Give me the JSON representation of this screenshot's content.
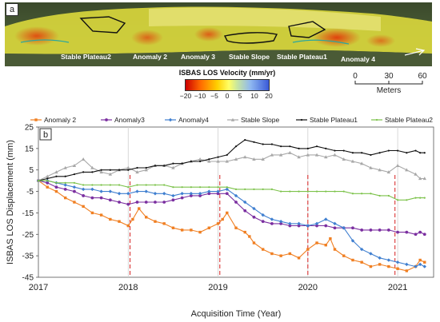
{
  "panel_a": {
    "tag": "a",
    "labels": [
      "Stable Plateau2",
      "Anomaly 2",
      "Anomaly 3",
      "Stable Slope",
      "Stable Plateau1",
      "Anomaly 4"
    ]
  },
  "colorbar": {
    "title": "ISBAS LOS Velocity (mm/yr)",
    "ticks": [
      "−20",
      "−10",
      "−5",
      "0",
      "5",
      "10",
      "20"
    ],
    "colors": [
      "#cc0000",
      "#ff6a00",
      "#ffd000",
      "#ffff66",
      "#c8e6a0",
      "#8fb8f0",
      "#3a5ad8"
    ]
  },
  "scalebar": {
    "ticks": [
      "0",
      "30",
      "60"
    ],
    "unit": "Meters"
  },
  "chart_data": {
    "type": "line",
    "tag": "b",
    "title": "",
    "xlabel": "Acquisition Time (Year)",
    "ylabel": "ISBAS LOS Displacement (mm)",
    "xlim": [
      2017,
      2021.4
    ],
    "ylim": [
      -45,
      25
    ],
    "xticks": [
      "2017",
      "2018",
      "2019",
      "2020",
      "2021"
    ],
    "yticks": [
      "25",
      "15",
      "5",
      "-5",
      "-15",
      "-25",
      "-35",
      "-45"
    ],
    "ytick_values": [
      25,
      15,
      5,
      -5,
      -15,
      -25,
      -35,
      -45
    ],
    "grid": "vertical",
    "event_lines_x": [
      2018.02,
      2019.02,
      2020.0,
      2020.97
    ],
    "legend_position": "top",
    "series": [
      {
        "name": "Anomaly 2",
        "color": "#f07f22",
        "marker": "square",
        "x": [
          2017.0,
          2017.1,
          2017.2,
          2017.3,
          2017.4,
          2017.5,
          2017.6,
          2017.7,
          2017.8,
          2017.9,
          2018.0,
          2018.05,
          2018.12,
          2018.2,
          2018.3,
          2018.4,
          2018.5,
          2018.6,
          2018.7,
          2018.8,
          2018.9,
          2019.0,
          2019.05,
          2019.1,
          2019.2,
          2019.3,
          2019.35,
          2019.4,
          2019.5,
          2019.6,
          2019.7,
          2019.8,
          2019.9,
          2020.0,
          2020.1,
          2020.2,
          2020.25,
          2020.3,
          2020.4,
          2020.5,
          2020.6,
          2020.7,
          2020.8,
          2020.9,
          2021.0,
          2021.1,
          2021.2,
          2021.25,
          2021.3
        ],
        "y": [
          0,
          -3,
          -5,
          -8,
          -10,
          -12,
          -15,
          -16,
          -18,
          -19,
          -21,
          -18,
          -13,
          -17,
          -19,
          -20,
          -22,
          -23,
          -23,
          -24,
          -22,
          -20,
          -18,
          -15,
          -22,
          -24,
          -26,
          -29,
          -32,
          -34,
          -35,
          -34,
          -36,
          -32,
          -29,
          -30,
          -27,
          -32,
          -35,
          -37,
          -38,
          -40,
          -39,
          -40,
          -41,
          -42,
          -40,
          -37,
          -38
        ]
      },
      {
        "name": "Anomaly3",
        "color": "#7b2fa0",
        "marker": "circle",
        "x": [
          2017.0,
          2017.1,
          2017.2,
          2017.3,
          2017.4,
          2017.5,
          2017.6,
          2017.7,
          2017.8,
          2017.9,
          2018.0,
          2018.1,
          2018.2,
          2018.3,
          2018.4,
          2018.5,
          2018.6,
          2018.7,
          2018.8,
          2018.9,
          2019.0,
          2019.1,
          2019.2,
          2019.3,
          2019.4,
          2019.5,
          2019.6,
          2019.7,
          2019.8,
          2019.9,
          2020.0,
          2020.1,
          2020.2,
          2020.3,
          2020.4,
          2020.5,
          2020.6,
          2020.7,
          2020.8,
          2020.9,
          2021.0,
          2021.1,
          2021.2,
          2021.25,
          2021.3
        ],
        "y": [
          0,
          -1,
          -3,
          -4,
          -5,
          -7,
          -8,
          -8,
          -9,
          -10,
          -11,
          -10,
          -10,
          -10,
          -10,
          -9,
          -8,
          -7,
          -7,
          -6,
          -6,
          -6,
          -10,
          -14,
          -17,
          -19,
          -20,
          -20,
          -21,
          -21,
          -21,
          -21,
          -21,
          -22,
          -22,
          -22,
          -23,
          -23,
          -23,
          -23,
          -24,
          -24,
          -25,
          -24,
          -25
        ]
      },
      {
        "name": "Anomaly4",
        "color": "#3f7fd0",
        "marker": "diamond",
        "x": [
          2017.0,
          2017.1,
          2017.2,
          2017.3,
          2017.4,
          2017.5,
          2017.6,
          2017.7,
          2017.8,
          2017.9,
          2018.0,
          2018.1,
          2018.2,
          2018.3,
          2018.4,
          2018.5,
          2018.6,
          2018.7,
          2018.8,
          2018.9,
          2019.0,
          2019.1,
          2019.2,
          2019.3,
          2019.4,
          2019.5,
          2019.6,
          2019.7,
          2019.8,
          2019.9,
          2020.0,
          2020.1,
          2020.2,
          2020.3,
          2020.4,
          2020.5,
          2020.6,
          2020.7,
          2020.8,
          2020.9,
          2021.0,
          2021.1,
          2021.2,
          2021.25,
          2021.3
        ],
        "y": [
          0,
          0,
          -1,
          -2,
          -3,
          -4,
          -4,
          -5,
          -5,
          -6,
          -6,
          -5,
          -5,
          -6,
          -6,
          -7,
          -6,
          -6,
          -6,
          -5,
          -5,
          -4,
          -7,
          -10,
          -13,
          -16,
          -18,
          -19,
          -20,
          -20,
          -21,
          -20,
          -18,
          -20,
          -22,
          -28,
          -32,
          -34,
          -36,
          -37,
          -38,
          -39,
          -40,
          -39,
          -40
        ]
      },
      {
        "name": "Stable Slope",
        "color": "#a8a8a8",
        "marker": "triangle",
        "x": [
          2017.0,
          2017.1,
          2017.2,
          2017.3,
          2017.4,
          2017.5,
          2017.6,
          2017.7,
          2017.8,
          2017.9,
          2018.0,
          2018.1,
          2018.2,
          2018.3,
          2018.4,
          2018.5,
          2018.6,
          2018.7,
          2018.8,
          2018.9,
          2019.0,
          2019.1,
          2019.2,
          2019.3,
          2019.4,
          2019.5,
          2019.6,
          2019.7,
          2019.8,
          2019.9,
          2020.0,
          2020.1,
          2020.2,
          2020.3,
          2020.4,
          2020.5,
          2020.6,
          2020.7,
          2020.8,
          2020.9,
          2021.0,
          2021.1,
          2021.2,
          2021.25,
          2021.3
        ],
        "y": [
          0,
          2,
          4,
          6,
          7,
          10,
          6,
          4,
          3,
          5,
          6,
          4,
          5,
          7,
          7,
          6,
          8,
          9,
          10,
          9,
          9,
          9,
          10,
          11,
          10,
          10,
          12,
          12,
          13,
          11,
          12,
          12,
          11,
          12,
          10,
          9,
          8,
          6,
          5,
          4,
          7,
          5,
          3,
          1,
          1
        ]
      },
      {
        "name": "Stable Plateau1",
        "color": "#111111",
        "marker": "dot",
        "x": [
          2017.0,
          2017.1,
          2017.2,
          2017.3,
          2017.4,
          2017.5,
          2017.6,
          2017.7,
          2017.8,
          2017.9,
          2018.0,
          2018.1,
          2018.2,
          2018.3,
          2018.4,
          2018.5,
          2018.6,
          2018.7,
          2018.8,
          2018.9,
          2019.0,
          2019.1,
          2019.2,
          2019.3,
          2019.4,
          2019.5,
          2019.6,
          2019.7,
          2019.8,
          2019.9,
          2020.0,
          2020.1,
          2020.2,
          2020.3,
          2020.4,
          2020.5,
          2020.6,
          2020.7,
          2020.8,
          2020.9,
          2021.0,
          2021.1,
          2021.2,
          2021.25,
          2021.3
        ],
        "y": [
          0,
          1,
          2,
          2,
          3,
          4,
          4,
          5,
          5,
          5,
          5,
          6,
          6,
          7,
          7,
          8,
          8,
          9,
          9,
          10,
          11,
          12,
          16,
          19,
          18,
          17,
          17,
          16,
          16,
          15,
          15,
          16,
          15,
          14,
          14,
          13,
          13,
          12,
          13,
          14,
          14,
          13,
          14,
          13,
          13
        ]
      },
      {
        "name": "Stable Plateau2",
        "color": "#7cc24a",
        "marker": "dot",
        "x": [
          2017.0,
          2017.1,
          2017.2,
          2017.3,
          2017.4,
          2017.5,
          2017.6,
          2017.7,
          2017.8,
          2017.9,
          2018.0,
          2018.1,
          2018.2,
          2018.3,
          2018.4,
          2018.5,
          2018.6,
          2018.7,
          2018.8,
          2018.9,
          2019.0,
          2019.1,
          2019.2,
          2019.3,
          2019.4,
          2019.5,
          2019.6,
          2019.7,
          2019.8,
          2019.9,
          2020.0,
          2020.1,
          2020.2,
          2020.3,
          2020.4,
          2020.5,
          2020.6,
          2020.7,
          2020.8,
          2020.9,
          2021.0,
          2021.1,
          2021.2,
          2021.25,
          2021.3
        ],
        "y": [
          0,
          0,
          -1,
          -1,
          -1,
          -2,
          -2,
          -2,
          -2,
          -2,
          -3,
          -2,
          -2,
          -2,
          -2,
          -3,
          -3,
          -3,
          -3,
          -3,
          -3,
          -3,
          -4,
          -4,
          -4,
          -4,
          -4,
          -5,
          -5,
          -5,
          -5,
          -5,
          -5,
          -5,
          -5,
          -6,
          -6,
          -6,
          -7,
          -7,
          -9,
          -9,
          -8,
          -8,
          -8
        ]
      }
    ]
  }
}
